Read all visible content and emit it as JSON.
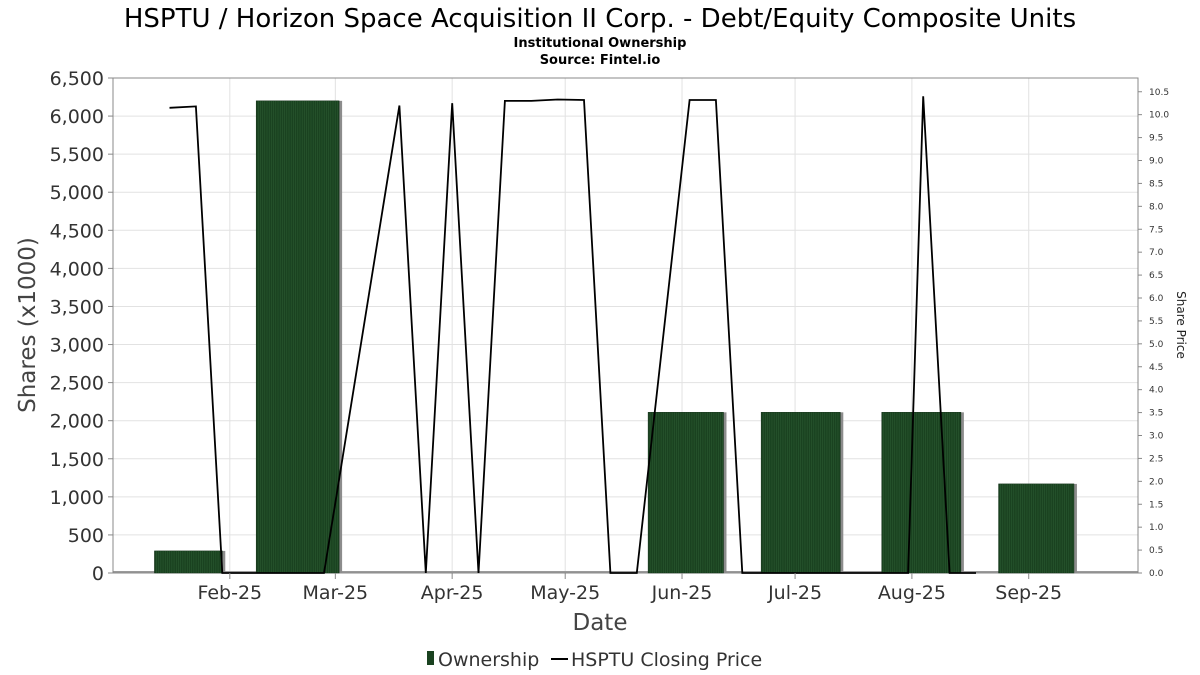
{
  "chart_data": {
    "type": "bar",
    "title": "HSPTU / Horizon Space Acquisition II Corp. - Debt/Equity Composite Units",
    "subtitle": "Institutional Ownership",
    "source": "Source: Fintel.io",
    "xlabel": "Date",
    "ylabel": "Shares (x1000)",
    "y2label": "Share Price",
    "ylim": [
      0,
      6500
    ],
    "y2lim": [
      0,
      10.8
    ],
    "yticks": [
      "0",
      "500",
      "1,000",
      "1,500",
      "2,000",
      "2,500",
      "3,000",
      "3,500",
      "4,000",
      "4,500",
      "5,000",
      "5,500",
      "6,000",
      "6,500"
    ],
    "y2ticks": [
      "0.0",
      "0.5",
      "1.0",
      "1.5",
      "2.0",
      "2.5",
      "3.0",
      "3.5",
      "4.0",
      "4.5",
      "5.0",
      "5.5",
      "6.0",
      "6.5",
      "7.0",
      "7.5",
      "8.0",
      "8.5",
      "9.0",
      "9.5",
      "10.0",
      "10.5"
    ],
    "xlim": [
      "2025-01-01",
      "2025-09-30"
    ],
    "x_tick_labels": [
      {
        "label": "Feb-25",
        "date": "2025-02-01"
      },
      {
        "label": "Mar-25",
        "date": "2025-03-01"
      },
      {
        "label": "Apr-25",
        "date": "2025-04-01"
      },
      {
        "label": "May-25",
        "date": "2025-05-01"
      },
      {
        "label": "Jun-25",
        "date": "2025-06-01"
      },
      {
        "label": "Jul-25",
        "date": "2025-07-01"
      },
      {
        "label": "Aug-25",
        "date": "2025-08-01"
      },
      {
        "label": "Sep-25",
        "date": "2025-09-01"
      }
    ],
    "series": [
      {
        "name": "Ownership",
        "type": "bar",
        "color": "#1a4220",
        "data": [
          {
            "start": "2025-01-12",
            "end": "2025-01-30",
            "value": 290
          },
          {
            "start": "2025-02-08",
            "end": "2025-03-02",
            "value": 6200
          },
          {
            "start": "2025-05-23",
            "end": "2025-06-12",
            "value": 2110
          },
          {
            "start": "2025-06-22",
            "end": "2025-07-13",
            "value": 2110
          },
          {
            "start": "2025-07-24",
            "end": "2025-08-14",
            "value": 2110
          },
          {
            "start": "2025-08-24",
            "end": "2025-09-13",
            "value": 1170
          }
        ]
      },
      {
        "name": "HSPTU Closing Price",
        "type": "line",
        "color": "#000000",
        "axis": "right",
        "points": [
          {
            "x": "2025-01-16",
            "y": 10.15
          },
          {
            "x": "2025-01-23",
            "y": 10.18
          },
          {
            "x": "2025-01-30",
            "y": 0
          },
          {
            "x": "2025-02-06",
            "y": 0
          },
          {
            "x": "2025-02-26",
            "y": 0
          },
          {
            "x": "2025-03-18",
            "y": 10.2
          },
          {
            "x": "2025-03-25",
            "y": 0
          },
          {
            "x": "2025-04-01",
            "y": 10.25
          },
          {
            "x": "2025-04-08",
            "y": 0
          },
          {
            "x": "2025-04-15",
            "y": 10.3
          },
          {
            "x": "2025-04-22",
            "y": 10.3
          },
          {
            "x": "2025-04-29",
            "y": 10.33
          },
          {
            "x": "2025-05-06",
            "y": 10.32
          },
          {
            "x": "2025-05-13",
            "y": 0
          },
          {
            "x": "2025-05-20",
            "y": 0
          },
          {
            "x": "2025-06-03",
            "y": 10.32
          },
          {
            "x": "2025-06-10",
            "y": 10.32
          },
          {
            "x": "2025-06-17",
            "y": 0
          },
          {
            "x": "2025-07-08",
            "y": 0
          },
          {
            "x": "2025-07-31",
            "y": 0
          },
          {
            "x": "2025-08-04",
            "y": 10.4
          },
          {
            "x": "2025-08-11",
            "y": 0
          },
          {
            "x": "2025-08-18",
            "y": 0
          }
        ]
      }
    ],
    "grid": true,
    "legend_position": "bottom-center"
  }
}
